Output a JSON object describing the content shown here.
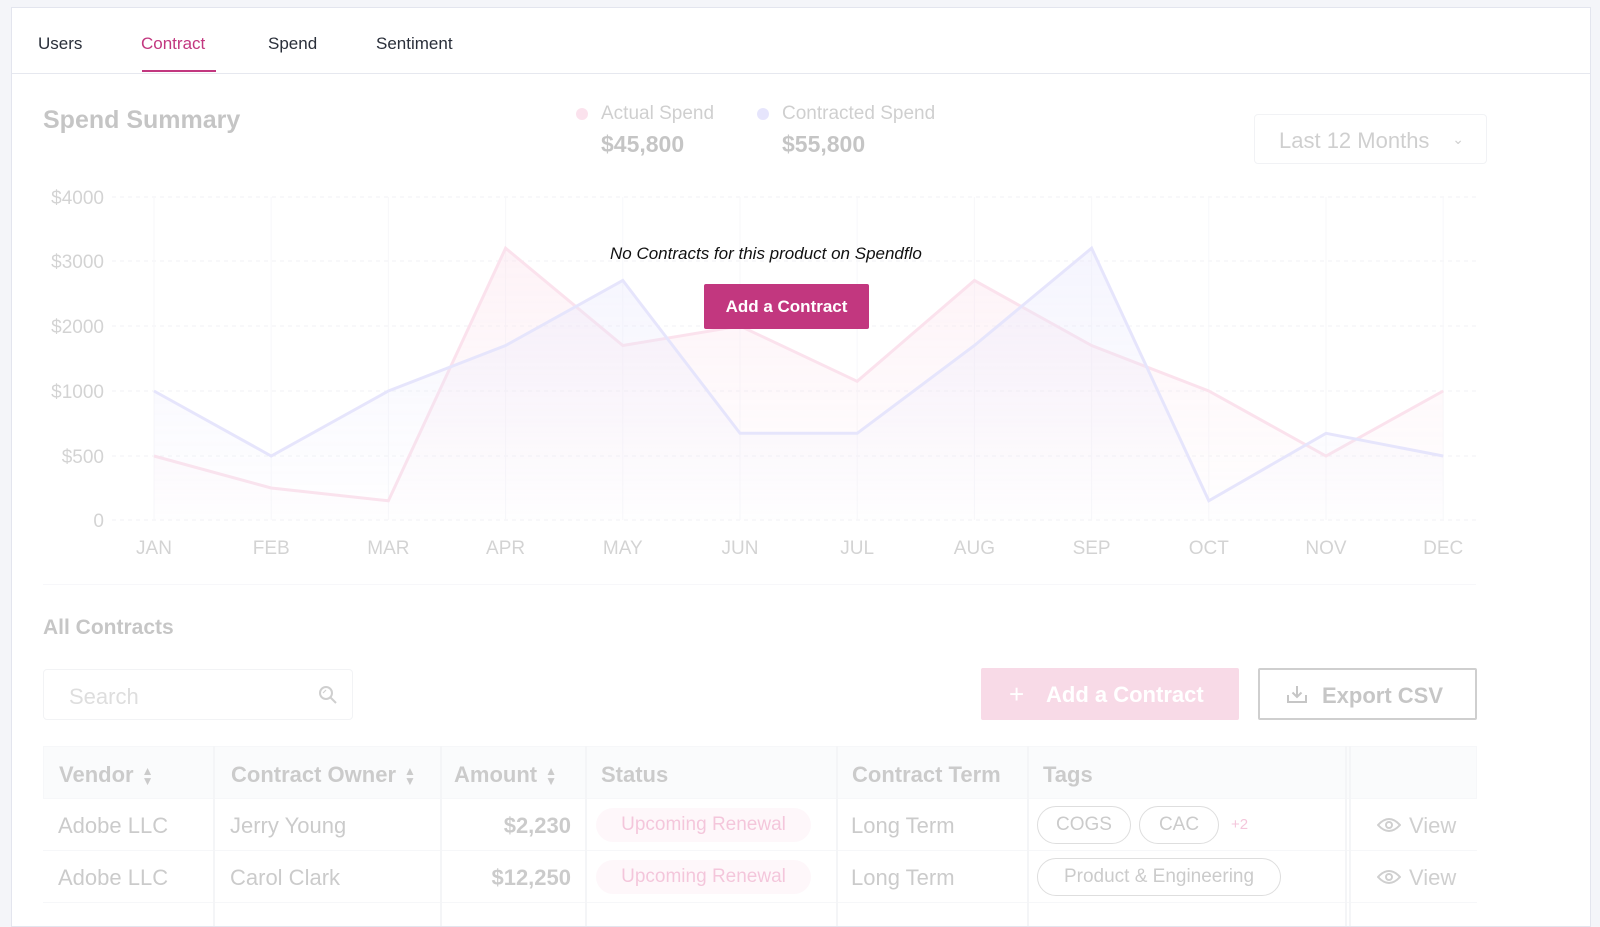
{
  "tabs": [
    {
      "label": "Users"
    },
    {
      "label": "Contract"
    },
    {
      "label": "Spend"
    },
    {
      "label": "Sentiment"
    }
  ],
  "summary": {
    "title": "Spend Summary",
    "actual_label": "Actual Spend",
    "actual_value": "$45,800",
    "contracted_label": "Contracted Spend",
    "contracted_value": "$55,800",
    "period": "Last 12 Months",
    "colors": {
      "actual": "#f29bbf",
      "contracted": "#a9a6f5",
      "accent": "#c2377f"
    }
  },
  "empty_state": {
    "message": "No Contracts for this product on Spendflo",
    "button": "Add a Contract"
  },
  "chart_data": {
    "type": "line",
    "x": [
      "JAN",
      "FEB",
      "MAR",
      "APR",
      "MAY",
      "JUN",
      "JUL",
      "AUG",
      "SEP",
      "OCT",
      "NOV",
      "DEC"
    ],
    "y_ticks": [
      "0",
      "$500",
      "$1000",
      "$2000",
      "$3000",
      "$4000"
    ],
    "series": [
      {
        "name": "Actual Spend",
        "values": [
          500,
          250,
          150,
          3200,
          1700,
          2000,
          1150,
          2700,
          1700,
          1000,
          500,
          1000
        ]
      },
      {
        "name": "Contracted Spend",
        "values": [
          1000,
          500,
          1000,
          1700,
          2700,
          675,
          675,
          1700,
          3200,
          150,
          675,
          500
        ]
      }
    ],
    "grid": true
  },
  "contracts": {
    "title": "All Contracts",
    "search_placeholder": "Search",
    "add_button": "Add a Contract",
    "export_button": "Export CSV",
    "columns": [
      "Vendor",
      "Contract Owner",
      "Amount",
      "Status",
      "Contract Term",
      "Tags"
    ],
    "rows": [
      {
        "vendor": "Adobe LLC",
        "owner": "Jerry Young",
        "amount": "$2,230",
        "status": "Upcoming Renewal",
        "term": "Long Term",
        "tags": [
          "COGS",
          "CAC"
        ],
        "more": "+2",
        "action": "View"
      },
      {
        "vendor": "Adobe LLC",
        "owner": "Carol Clark",
        "amount": "$12,250",
        "status": "Upcoming Renewal",
        "term": "Long Term",
        "tags": [
          "Product & Engineering"
        ],
        "more": "",
        "action": "View"
      }
    ]
  }
}
